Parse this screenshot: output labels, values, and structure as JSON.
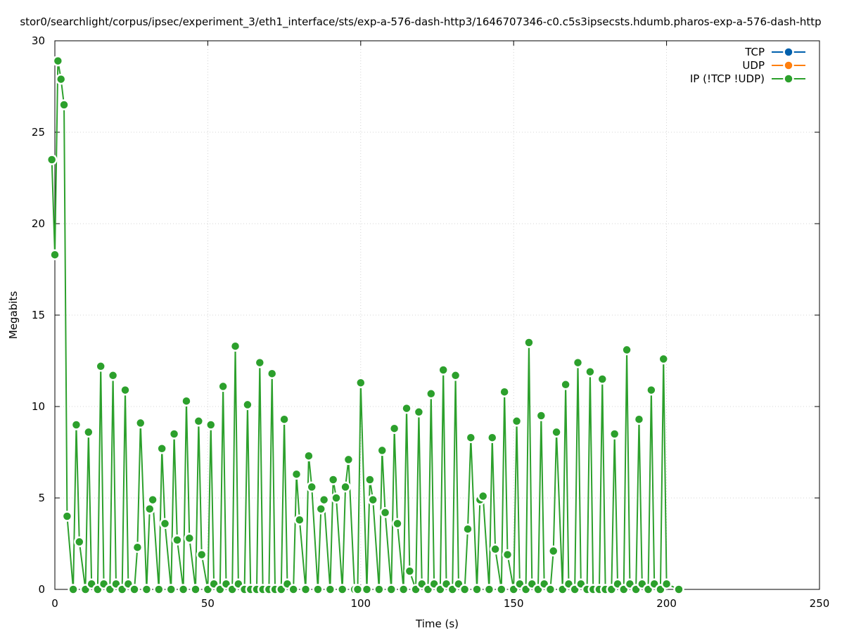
{
  "chart_data": {
    "type": "line",
    "title": "stor0/searchlight/corpus/ipsec/experiment_3/eth1_interface/sts/exp-a-576-dash-http3/1646707346-c0.c5s3ipsecsts.hdumb.pharos-exp-a-576-dash-http",
    "xlabel": "Time (s)",
    "ylabel": "Megabits",
    "xlim": [
      0,
      250
    ],
    "ylim": [
      0,
      30
    ],
    "xticks": [
      0,
      50,
      100,
      150,
      200,
      250
    ],
    "yticks": [
      0,
      5,
      10,
      15,
      20,
      25,
      30
    ],
    "grid": true,
    "legend_position": "top-right",
    "series": [
      {
        "name": "TCP",
        "color": "#0060ad",
        "x": [],
        "y": []
      },
      {
        "name": "UDP",
        "color": "#ff7f0e",
        "x": [],
        "y": []
      },
      {
        "name": "IP (!TCP  !UDP)",
        "color": "#2ca02c",
        "x": [
          -1,
          0,
          1,
          2,
          3,
          4,
          6,
          7,
          8,
          10,
          11,
          12,
          14,
          15,
          16,
          18,
          19,
          20,
          22,
          23,
          24,
          26,
          27,
          28,
          30,
          31,
          32,
          34,
          35,
          36,
          38,
          39,
          40,
          42,
          43,
          44,
          46,
          47,
          48,
          50,
          51,
          52,
          54,
          55,
          56,
          58,
          59,
          60,
          62,
          63,
          64,
          66,
          67,
          68,
          70,
          71,
          72,
          74,
          75,
          76,
          78,
          79,
          80,
          82,
          83,
          84,
          86,
          87,
          88,
          90,
          91,
          92,
          94,
          95,
          96,
          98,
          99,
          100,
          102,
          103,
          104,
          106,
          107,
          108,
          110,
          111,
          112,
          114,
          115,
          116,
          118,
          119,
          120,
          122,
          123,
          124,
          126,
          127,
          128,
          130,
          131,
          132,
          134,
          135,
          136,
          138,
          139,
          140,
          142,
          143,
          144,
          146,
          147,
          148,
          150,
          151,
          152,
          154,
          155,
          156,
          158,
          159,
          160,
          162,
          163,
          164,
          166,
          167,
          168,
          170,
          171,
          172,
          174,
          175,
          176,
          178,
          179,
          180,
          182,
          183,
          184,
          186,
          187,
          188,
          190,
          191,
          192,
          194,
          195,
          196,
          198,
          199,
          200,
          204
        ],
        "y": [
          23.5,
          18.3,
          28.9,
          27.9,
          26.5,
          4.0,
          0,
          9.0,
          2.6,
          0,
          8.6,
          0.3,
          0,
          12.2,
          0.3,
          0,
          11.7,
          0.3,
          0,
          10.9,
          0.3,
          0,
          2.3,
          9.1,
          0,
          4.4,
          4.9,
          0,
          7.7,
          3.6,
          0,
          8.5,
          2.7,
          0,
          10.3,
          2.8,
          0,
          9.2,
          1.9,
          0,
          9.0,
          0.3,
          0,
          11.1,
          0.3,
          0,
          13.3,
          0.3,
          0,
          10.1,
          0,
          0,
          12.4,
          0,
          0,
          11.8,
          0,
          0,
          9.3,
          0.3,
          0,
          6.3,
          3.8,
          0,
          7.3,
          5.6,
          0,
          4.4,
          4.9,
          0,
          6.0,
          5.0,
          0,
          5.6,
          7.1,
          0,
          0,
          11.3,
          0,
          6.0,
          4.9,
          0,
          7.6,
          4.2,
          0,
          8.8,
          3.6,
          0,
          9.9,
          1.0,
          0,
          9.7,
          0.3,
          0,
          10.7,
          0.3,
          0,
          12.0,
          0.3,
          0,
          11.7,
          0.3,
          0,
          3.3,
          8.3,
          0,
          4.9,
          5.1,
          0,
          8.3,
          2.2,
          0,
          10.8,
          1.9,
          0,
          9.2,
          0.3,
          0,
          13.5,
          0.3,
          0,
          9.5,
          0.3,
          0,
          2.1,
          8.6,
          0,
          11.2,
          0.3,
          0,
          12.4,
          0.3,
          0,
          11.9,
          0,
          0,
          11.5,
          0,
          0,
          8.5,
          0.3,
          0,
          13.1,
          0.3,
          0,
          9.3,
          0.3,
          0,
          10.9,
          0.3,
          0,
          12.6,
          0.3,
          0
        ]
      }
    ]
  }
}
